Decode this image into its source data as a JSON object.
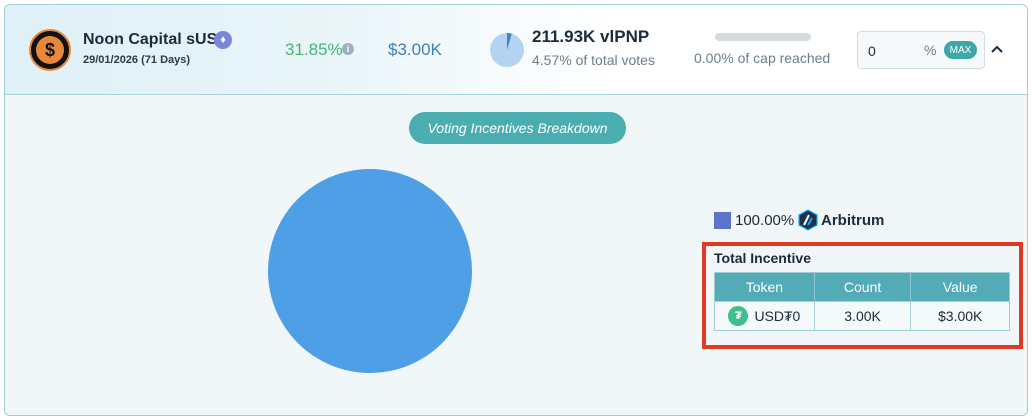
{
  "pool": {
    "name": "Noon Capital sUSN",
    "date": "29/01/2026 (71 Days)",
    "logo_symbol": "$",
    "chain_badge_icon": "ethereum-icon",
    "apr": "31.85%",
    "incentive": "$3.00K",
    "votes": "211.93K vlPNP",
    "votes_pct": "4.57% of total votes",
    "votes_fraction": 0.0457,
    "cap_text": "0.00% of cap reached",
    "cap_fraction": 0.0
  },
  "vote_input": {
    "value": "0",
    "suffix": "%",
    "max_label": "MAX"
  },
  "breakdown": {
    "button_label": "Voting Incentives Breakdown",
    "legend": [
      {
        "pct": "100.00%",
        "chain": "Arbitrum",
        "icon": "arbitrum-icon",
        "color": "#5b73c9"
      }
    ],
    "pie_color": "#4f9fe6"
  },
  "total_incentive": {
    "title": "Total Incentive",
    "headers": [
      "Token",
      "Count",
      "Value"
    ],
    "rows": [
      {
        "token": "USD₮0",
        "icon": "usdt0-icon",
        "count": "3.00K",
        "value": "$3.00K"
      }
    ]
  },
  "colors": {
    "accent": "#4aaeb0",
    "apr_green": "#46b574",
    "amount_blue": "#3e7fb8",
    "highlight_red": "#e03a25"
  }
}
